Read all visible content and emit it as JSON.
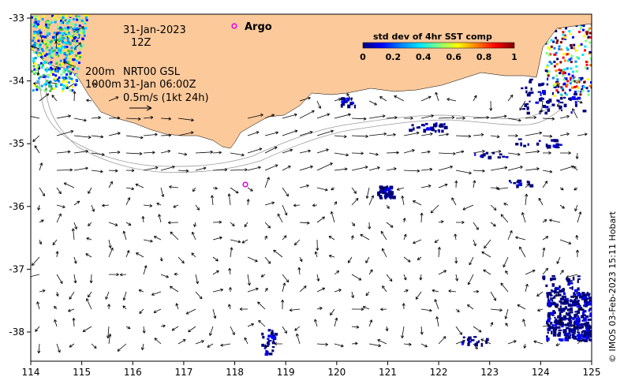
{
  "map": {
    "lon_ticks": [
      "114",
      "115",
      "116",
      "117",
      "118",
      "119",
      "120",
      "121",
      "122",
      "123",
      "124",
      "125"
    ],
    "lat_ticks": [
      "-33",
      "-34",
      "-35",
      "-36",
      "-37",
      "-38"
    ],
    "annotations": {
      "date": "31-Jan-2023",
      "time": "12Z",
      "depth_contours": [
        "200m",
        "1000m"
      ],
      "model": "NRT00 GSL",
      "model_time": "31-Jan 06:00Z",
      "scale_label": "0.5m/s (1kt 24h)"
    },
    "argo": {
      "label": "Argo",
      "marker_color": "#e600e6"
    },
    "colorbar": {
      "title": "std dev of 4hr SST comp",
      "ticks": [
        "0",
        "0.2",
        "0.4",
        "0.6",
        "0.8",
        "1"
      ],
      "stops": [
        "#00007f",
        "#0000ff",
        "#0080ff",
        "#00e5ff",
        "#7fff7f",
        "#ffff00",
        "#ff8000",
        "#ff0000",
        "#7f0000"
      ]
    },
    "credit": "© IMOS 03-Feb-2023 15:11 Hobart",
    "colors": {
      "land": "#fcc99b",
      "ocean": "#ffffff",
      "vector": "#000000",
      "contour": "#9a9a9a"
    }
  }
}
